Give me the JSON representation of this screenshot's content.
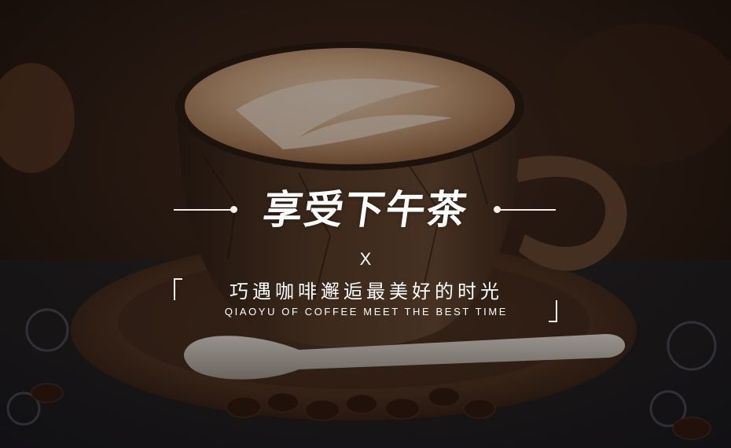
{
  "photo": {
    "subject": "coffee-cup-photo",
    "colors": {
      "background": "#2a1b12",
      "foam": "#d9b08a",
      "cup": "#4a3322",
      "saucer": "#5a3a24",
      "spoon": "#d8d2c8",
      "beans": "#2e1a10"
    }
  },
  "headline": {
    "title": "享受下午茶",
    "cross": "X",
    "subtitle_cn": "巧遇咖啡邂逅最美好的时光",
    "subtitle_en": "QIAOYU OF COFFEE MEET THE BEST TIME"
  },
  "colors": {
    "text": "#ffffff",
    "rule": "#f3eee9"
  }
}
